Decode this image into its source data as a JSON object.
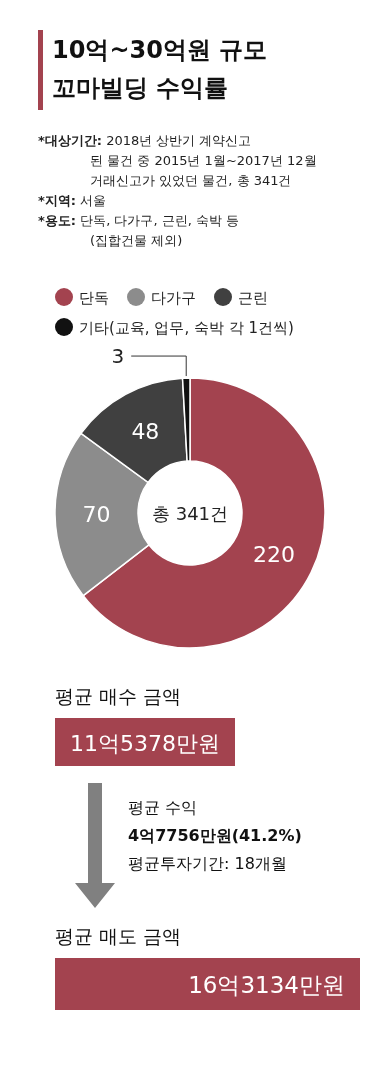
{
  "chart_data": [
    {
      "type": "donut",
      "title": "10억~30억원 규모\n꼬마빌딩 수익률",
      "annotations": [
        "*대상기간: 2018년 상반기 계약신고\n된 물건 중 2015년 1월~2017년 12월\n거래신고가 있었던 물건, 총 341건",
        "*지역: 서울",
        "*용도: 단독, 다가구, 근린, 숙박 등\n(집합건물 제외)",
        "총 341건"
      ],
      "categories": [
        "단독",
        "다가구",
        "근린",
        "기타(교육, 업무, 숙박 각 1건씩)"
      ],
      "values": [
        220,
        70,
        48,
        3
      ],
      "colors": [
        "#a3434f",
        "#8c8c8c",
        "#404040",
        "#111111"
      ],
      "data_labels": true,
      "legend": "top"
    },
    {
      "type": "other",
      "annotations": [
        "평균 매수 금액",
        "11억5378만원",
        "평균 수익",
        "4억7756만원(41.2%)",
        "평균투자기간: 18개월",
        "평균 매도 금액",
        "16억3134만원"
      ]
    }
  ]
}
